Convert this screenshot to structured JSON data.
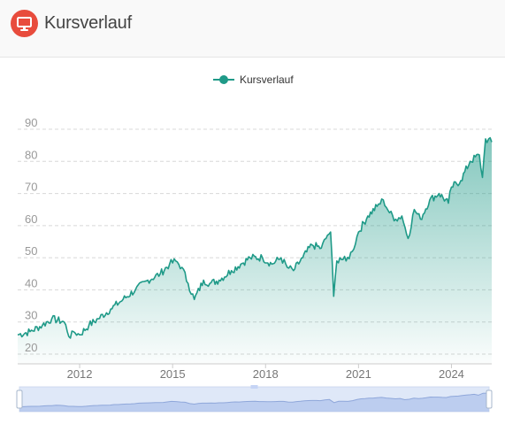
{
  "header": {
    "title": "Kursverlauf",
    "icon": "monitor-icon",
    "icon_color": "#e84c3d"
  },
  "chart_data": {
    "type": "area",
    "legend": [
      "Kursverlauf"
    ],
    "legend_position": "top-center",
    "y_ticks": [
      "20",
      "30",
      "40",
      "50",
      "60",
      "70",
      "80",
      "90"
    ],
    "x_ticks": [
      "2012",
      "2015",
      "2018",
      "2021",
      "2024"
    ],
    "ylim": [
      20,
      90
    ],
    "xlim": [
      2010.0,
      2025.3
    ],
    "grid": "horizontal-dashed",
    "line_color": "#1f9a88",
    "has_data_zoom_slider": true,
    "series": [
      {
        "name": "Kursverlauf",
        "x": [
          2010.0,
          2010.4,
          2010.8,
          2011.1,
          2011.5,
          2011.7,
          2011.8,
          2012.0,
          2012.3,
          2012.6,
          2013.0,
          2013.4,
          2013.8,
          2014.2,
          2014.6,
          2014.9,
          2015.1,
          2015.3,
          2015.5,
          2015.7,
          2016.0,
          2016.2,
          2016.5,
          2016.9,
          2017.2,
          2017.5,
          2017.9,
          2018.2,
          2018.5,
          2018.7,
          2018.9,
          2019.2,
          2019.5,
          2019.8,
          2020.0,
          2020.1,
          2020.2,
          2020.3,
          2020.4,
          2020.6,
          2020.8,
          2021.0,
          2021.3,
          2021.6,
          2021.8,
          2022.0,
          2022.2,
          2022.4,
          2022.6,
          2022.8,
          2023.0,
          2023.3,
          2023.6,
          2023.9,
          2024.0,
          2024.3,
          2024.6,
          2024.9,
          2025.0,
          2025.1,
          2025.3
        ],
        "values": [
          26,
          27,
          29,
          31,
          30,
          25,
          27,
          26,
          29,
          31,
          34,
          37,
          40,
          43,
          45,
          48,
          49,
          47,
          42,
          37,
          43,
          42,
          43,
          46,
          48,
          50,
          50,
          48,
          50,
          47,
          46,
          50,
          54,
          53,
          57,
          58,
          38,
          49,
          50,
          49,
          52,
          58,
          63,
          66,
          68,
          64,
          62,
          63,
          56,
          65,
          62,
          68,
          70,
          67,
          72,
          74,
          80,
          82,
          75,
          87,
          86
        ]
      }
    ]
  }
}
